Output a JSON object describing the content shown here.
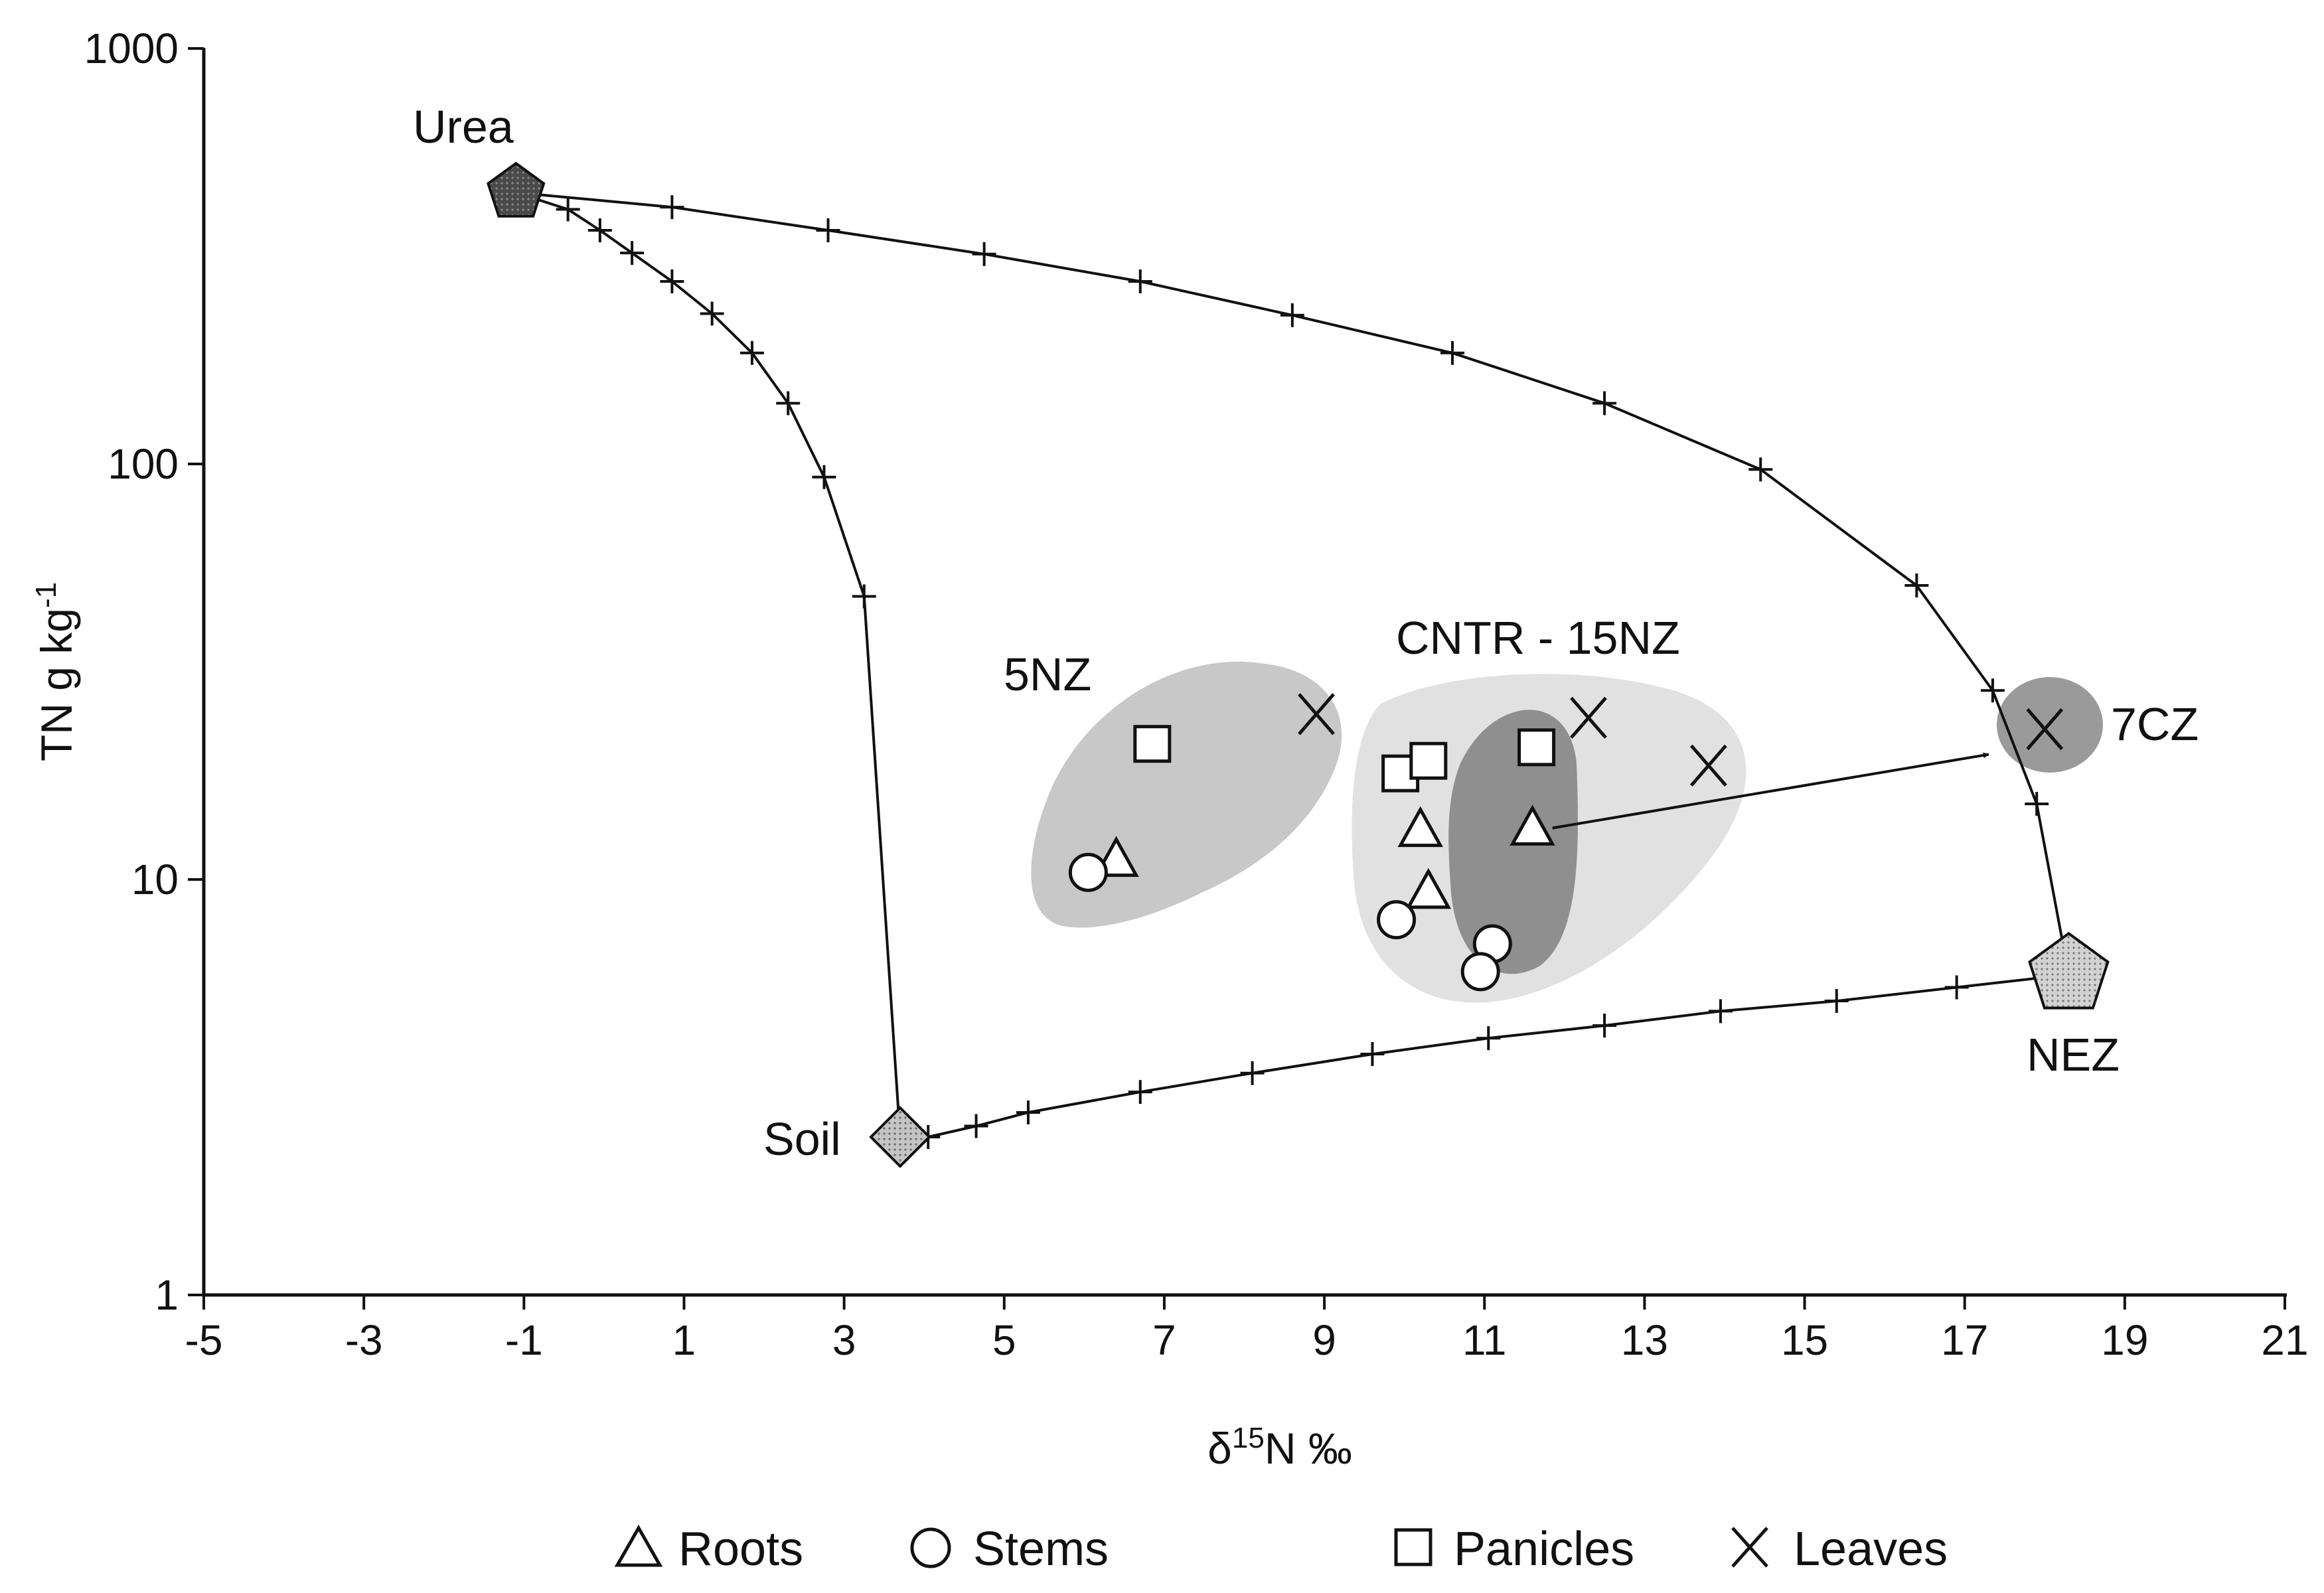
{
  "chart_data": {
    "type": "scatter",
    "title": "",
    "xlabel": "δ15N ‰",
    "ylabel": "TN g kg-1",
    "xlim": [
      -5,
      21
    ],
    "ylim": [
      1,
      1000
    ],
    "y_scale": "log",
    "x_ticks": [
      "-5",
      "-3",
      "-1",
      "1",
      "3",
      "5",
      "7",
      "9",
      "11",
      "13",
      "15",
      "17",
      "19",
      "21"
    ],
    "y_ticks": [
      "1",
      "10",
      "100",
      "1000"
    ],
    "grid": false,
    "legend_position": "bottom",
    "legend": [
      {
        "label": "Roots",
        "marker": "triangle"
      },
      {
        "label": "Stems",
        "marker": "circle"
      },
      {
        "label": "Panicles",
        "marker": "square"
      },
      {
        "label": "Leaves",
        "marker": "x"
      }
    ],
    "end_members": [
      {
        "label": "Urea",
        "marker": "pentagon-dark",
        "x": -1.1,
        "y": 450
      },
      {
        "label": "NEZ",
        "marker": "pentagon-light",
        "x": 18.3,
        "y": 5.9
      },
      {
        "label": "Soil",
        "marker": "diamond",
        "x": 3.7,
        "y": 2.4
      }
    ],
    "mixing_lines": [
      {
        "points": [
          [
            -1.1,
            450
          ],
          [
            0.85,
            415
          ],
          [
            2.8,
            365
          ],
          [
            4.75,
            320
          ],
          [
            6.7,
            275
          ],
          [
            8.6,
            228
          ],
          [
            10.6,
            185
          ],
          [
            12.5,
            140
          ],
          [
            14.45,
            97
          ],
          [
            16.4,
            51
          ],
          [
            17.35,
            28.5
          ],
          [
            17.9,
            15.2
          ],
          [
            18.3,
            5.9
          ]
        ]
      },
      {
        "points": [
          [
            -1.1,
            450
          ],
          [
            -0.45,
            410
          ],
          [
            -0.05,
            365
          ],
          [
            0.35,
            322
          ],
          [
            0.85,
            275
          ],
          [
            1.35,
            230
          ],
          [
            1.85,
            185
          ],
          [
            2.3,
            140
          ],
          [
            2.75,
            93
          ],
          [
            3.25,
            48
          ],
          [
            3.7,
            2.4
          ]
        ]
      },
      {
        "points": [
          [
            3.7,
            2.4
          ],
          [
            4.05,
            2.4
          ],
          [
            4.65,
            2.55
          ],
          [
            5.3,
            2.75
          ],
          [
            6.7,
            3.08
          ],
          [
            8.1,
            3.42
          ],
          [
            9.6,
            3.8
          ],
          [
            11.05,
            4.15
          ],
          [
            12.5,
            4.45
          ],
          [
            13.95,
            4.82
          ],
          [
            15.4,
            5.1
          ],
          [
            16.9,
            5.5
          ],
          [
            18.3,
            5.9
          ]
        ]
      }
    ],
    "groups": [
      {
        "label": "5NZ",
        "shade": "#c8c8c8"
      },
      {
        "label": "CNTR - 15NZ",
        "shade": "#e1e1e1"
      },
      {
        "label": "",
        "shade": "#8f8f8f"
      },
      {
        "label": "7CZ",
        "shade": "#9a9a9a"
      }
    ],
    "series": [
      {
        "name": "Roots",
        "marker": "triangle",
        "points": [
          [
            6.4,
            11.1
          ],
          [
            10.2,
            13.1
          ],
          [
            10.3,
            9.3
          ],
          [
            11.6,
            13.2
          ]
        ]
      },
      {
        "name": "Stems",
        "marker": "circle",
        "points": [
          [
            6.05,
            10.4
          ],
          [
            9.9,
            8.0
          ],
          [
            11.1,
            7.0
          ],
          [
            10.95,
            6.0
          ]
        ]
      },
      {
        "name": "Panicles",
        "marker": "square",
        "points": [
          [
            6.85,
            21.2
          ],
          [
            9.95,
            18.0
          ],
          [
            10.3,
            19.3
          ],
          [
            11.65,
            20.8
          ]
        ]
      },
      {
        "name": "Leaves",
        "marker": "x",
        "points": [
          [
            8.9,
            25.0
          ],
          [
            12.3,
            24.5
          ],
          [
            13.8,
            18.8
          ],
          [
            18.0,
            23.0
          ]
        ]
      }
    ],
    "arrow": {
      "from": [
        11.85,
        13.3
      ],
      "to": [
        17.3,
        20.0
      ]
    },
    "style": {
      "line": "#111111",
      "marker_fill": "#ffffff",
      "urea_fill": "#555555",
      "nez_fill": "#c9c9c9",
      "soil_fill": "#bdbdbd"
    }
  }
}
